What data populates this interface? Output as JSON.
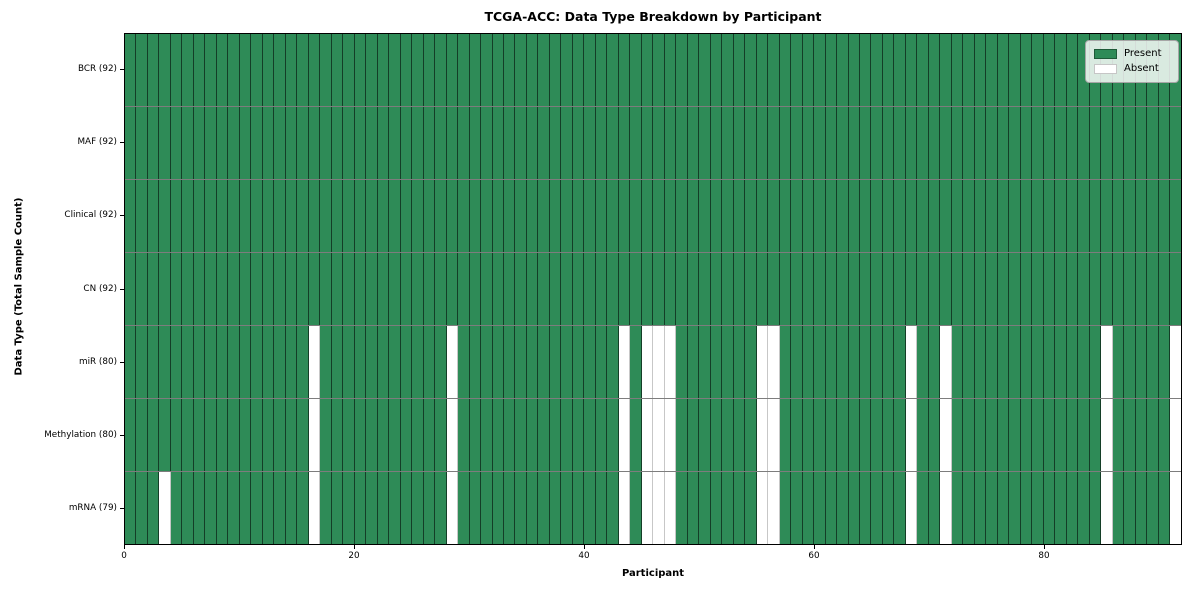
{
  "chart_data": {
    "type": "heatmap",
    "title": "TCGA-ACC: Data Type Breakdown by Participant",
    "xlabel": "Participant",
    "ylabel": "Data Type (Total Sample Count)",
    "n_participants": 92,
    "x_ticks": [
      "0",
      "20",
      "40",
      "60",
      "80"
    ],
    "x_tick_values": [
      0,
      20,
      40,
      60,
      80
    ],
    "grid": "cell-edges",
    "legend_position": "upper-right",
    "legend": [
      {
        "label": "Present",
        "state": "present"
      },
      {
        "label": "Absent",
        "state": "absent"
      }
    ],
    "colors": {
      "present": "#2e8b57",
      "absent": "#ffffff",
      "cell_edge": "rgba(0,0,0,0.55)",
      "row_separator": "#7d7d7d",
      "figure_background": "#ffffff"
    },
    "rows": [
      {
        "label": "BCR (92)",
        "present_count": 92,
        "absent_participants": []
      },
      {
        "label": "MAF (92)",
        "present_count": 92,
        "absent_participants": []
      },
      {
        "label": "Clinical (92)",
        "present_count": 92,
        "absent_participants": []
      },
      {
        "label": "CN (92)",
        "present_count": 92,
        "absent_participants": []
      },
      {
        "label": "miR (80)",
        "present_count": 80,
        "absent_participants": [
          16,
          28,
          43,
          45,
          46,
          47,
          55,
          56,
          68,
          71,
          85,
          91
        ]
      },
      {
        "label": "Methylation (80)",
        "present_count": 80,
        "absent_participants": [
          16,
          28,
          43,
          45,
          46,
          47,
          55,
          56,
          68,
          71,
          85,
          91
        ]
      },
      {
        "label": "mRNA (79)",
        "present_count": 79,
        "absent_participants": [
          3,
          16,
          28,
          43,
          45,
          46,
          47,
          55,
          56,
          68,
          71,
          85,
          91
        ]
      }
    ]
  }
}
